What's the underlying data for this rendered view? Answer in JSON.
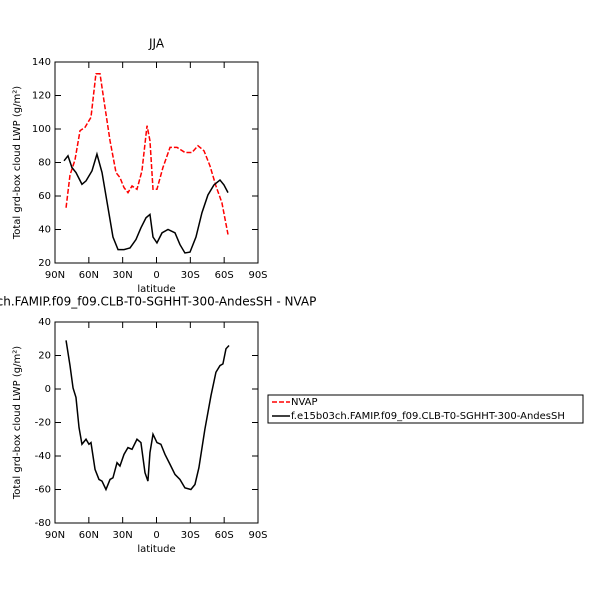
{
  "chart_data": [
    {
      "type": "line",
      "title": "JJA",
      "xlabel": "latitude",
      "ylabel": "Total grd-box cloud LWP (g/m²)",
      "xlim": [
        90,
        -90
      ],
      "xticks": [
        {
          "value": 90,
          "label": "90N"
        },
        {
          "value": 60,
          "label": "60N"
        },
        {
          "value": 30,
          "label": "30N"
        },
        0,
        {
          "value": -30,
          "label": "30S"
        },
        {
          "value": -60,
          "label": "60S"
        },
        {
          "value": -90,
          "label": "90S"
        }
      ],
      "ylim": [
        20,
        140
      ],
      "yticks": [
        20,
        40,
        60,
        80,
        100,
        120,
        140
      ],
      "legend": "right",
      "series": [
        {
          "name": "NVAP",
          "color": "#ff0000",
          "dash": true,
          "x": [
            80.2,
            76.7,
            72.3,
            67.8,
            63.4,
            58.1,
            53.7,
            50.1,
            46.6,
            41.2,
            35.9,
            32.4,
            28.8,
            25.3,
            21.7,
            17.3,
            12.9,
            8.4,
            5.8,
            3.1,
            -0.4,
            -5.7,
            -12,
            -18.2,
            -25.2,
            -31.5,
            -36.8,
            -42.1,
            -47.4,
            -52.7,
            -58,
            -63.4
          ],
          "values": [
            53,
            72.5,
            81.5,
            99,
            101,
            107,
            133,
            133,
            117,
            93,
            74,
            71,
            65,
            62,
            66,
            64,
            75,
            102,
            93,
            64,
            64,
            77,
            89,
            89,
            86,
            86,
            90,
            87,
            78,
            66,
            56,
            37
          ]
        },
        {
          "name": "f.e15b03ch.FAMIP.f09_f09.CLB-T0-SGHHT-300-AndesSH",
          "color": "#000000",
          "dash": false,
          "x": [
            82,
            78.5,
            75,
            71.4,
            66.1,
            62.5,
            57.2,
            52.8,
            48.3,
            43,
            38.6,
            34.1,
            28.8,
            23.5,
            18.2,
            13.8,
            9.3,
            5.8,
            3.1,
            -0.4,
            -4.9,
            -10.2,
            -16.4,
            -20.8,
            -25.2,
            -29.7,
            -35,
            -40.3,
            -45.6,
            -50.9,
            -56.3,
            -59.8,
            -63.4
          ],
          "values": [
            81,
            84,
            77,
            74,
            67,
            69,
            75,
            85,
            74,
            53,
            35.5,
            28,
            28,
            29,
            34,
            41,
            47,
            49,
            35.5,
            32,
            38,
            40,
            38,
            31,
            26,
            26.5,
            35.5,
            50,
            60.6,
            66.6,
            69.5,
            66.6,
            62
          ]
        }
      ]
    },
    {
      "type": "line",
      "title": "ch.FAMIP.f09_f09.CLB-T0-SGHHT-300-AndesSH - NVAP",
      "xlabel": "latitude",
      "ylabel": "Total grd-box cloud LWP (g/m²)",
      "xlim": [
        90,
        -90
      ],
      "xticks": [
        {
          "value": 90,
          "label": "90N"
        },
        {
          "value": 60,
          "label": "60N"
        },
        {
          "value": 30,
          "label": "30N"
        },
        0,
        {
          "value": -30,
          "label": "30S"
        },
        {
          "value": -60,
          "label": "60S"
        },
        {
          "value": -90,
          "label": "90S"
        }
      ],
      "ylim": [
        -80,
        40
      ],
      "yticks": [
        -80,
        -60,
        -40,
        -20,
        0,
        20,
        40
      ],
      "series": [
        {
          "color": "#000000",
          "dash": false,
          "x": [
            80.2,
            76.7,
            74,
            71.4,
            68.7,
            66.1,
            62.5,
            59.9,
            58.1,
            54.5,
            51,
            48.3,
            44.8,
            41.2,
            38.6,
            35,
            32.4,
            28.8,
            25.3,
            21.7,
            17.3,
            13.8,
            10.2,
            7.6,
            5.8,
            3.1,
            -0.4,
            -3.9,
            -7.5,
            -12,
            -16.4,
            -20.8,
            -25.2,
            -30.5,
            -34.1,
            -37.6,
            -42.9,
            -48.3,
            -52.7,
            -56.3,
            -58.9,
            -61.6,
            -64.3
          ],
          "values": [
            29,
            14,
            0.6,
            -5,
            -23,
            -33,
            -30,
            -33,
            -32,
            -48,
            -54,
            -55,
            -60,
            -54,
            -53,
            -44,
            -46,
            -39,
            -35,
            -36,
            -30,
            -32,
            -50,
            -55,
            -38,
            -27,
            -32,
            -33,
            -39,
            -45,
            -51,
            -54,
            -59,
            -60,
            -57,
            -47,
            -24,
            -4,
            10,
            14,
            15,
            24,
            26
          ]
        }
      ]
    }
  ]
}
